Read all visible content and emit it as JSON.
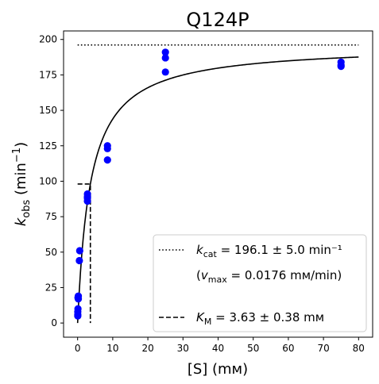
{
  "chart_data": {
    "type": "scatter",
    "title": "Q124P",
    "xlabel": "[S] (mм)",
    "ylabel": "k_obs (min⁻¹)",
    "xlim": [
      -4,
      84
    ],
    "ylim": [
      -10,
      206
    ],
    "xticks": [
      0,
      10,
      20,
      30,
      40,
      50,
      60,
      70,
      80
    ],
    "yticks": [
      0,
      25,
      50,
      75,
      100,
      125,
      150,
      175,
      200
    ],
    "grid": false,
    "legend_position": "bottom-right",
    "series": [
      {
        "type": "scatter",
        "color": "#0000ff",
        "x": [
          0.05,
          0.05,
          0.05,
          0.1,
          0.1,
          0.2,
          0.2,
          0.5,
          0.6,
          2.8,
          2.8,
          2.8,
          2.8,
          8.5,
          8.5,
          8.5,
          25,
          25,
          25,
          75,
          75,
          75
        ],
        "y": [
          5,
          6,
          8,
          10,
          18,
          17,
          19,
          44,
          51,
          86,
          88,
          89,
          91,
          115,
          123,
          125,
          177,
          187,
          191,
          181,
          182,
          184
        ]
      },
      {
        "type": "line",
        "style": "solid",
        "color": "#000000",
        "model": "michaelis-menten",
        "kcat": 196.1,
        "km": 3.63,
        "x_range": [
          0,
          80
        ]
      },
      {
        "type": "line",
        "style": "dotted",
        "color": "#000000",
        "x": [
          0,
          80
        ],
        "y": [
          196.1,
          196.1
        ]
      },
      {
        "type": "line",
        "style": "dashed",
        "color": "#000000",
        "x": [
          0,
          3.63,
          3.63
        ],
        "y": [
          98.05,
          98.05,
          0
        ]
      }
    ],
    "legend": {
      "kcat_text": "= 196.1 ± 5.0 min⁻¹",
      "vmax_text": "= 0.0176 mм/min)",
      "km_text": "= 3.63 ± 0.38 mм"
    }
  }
}
